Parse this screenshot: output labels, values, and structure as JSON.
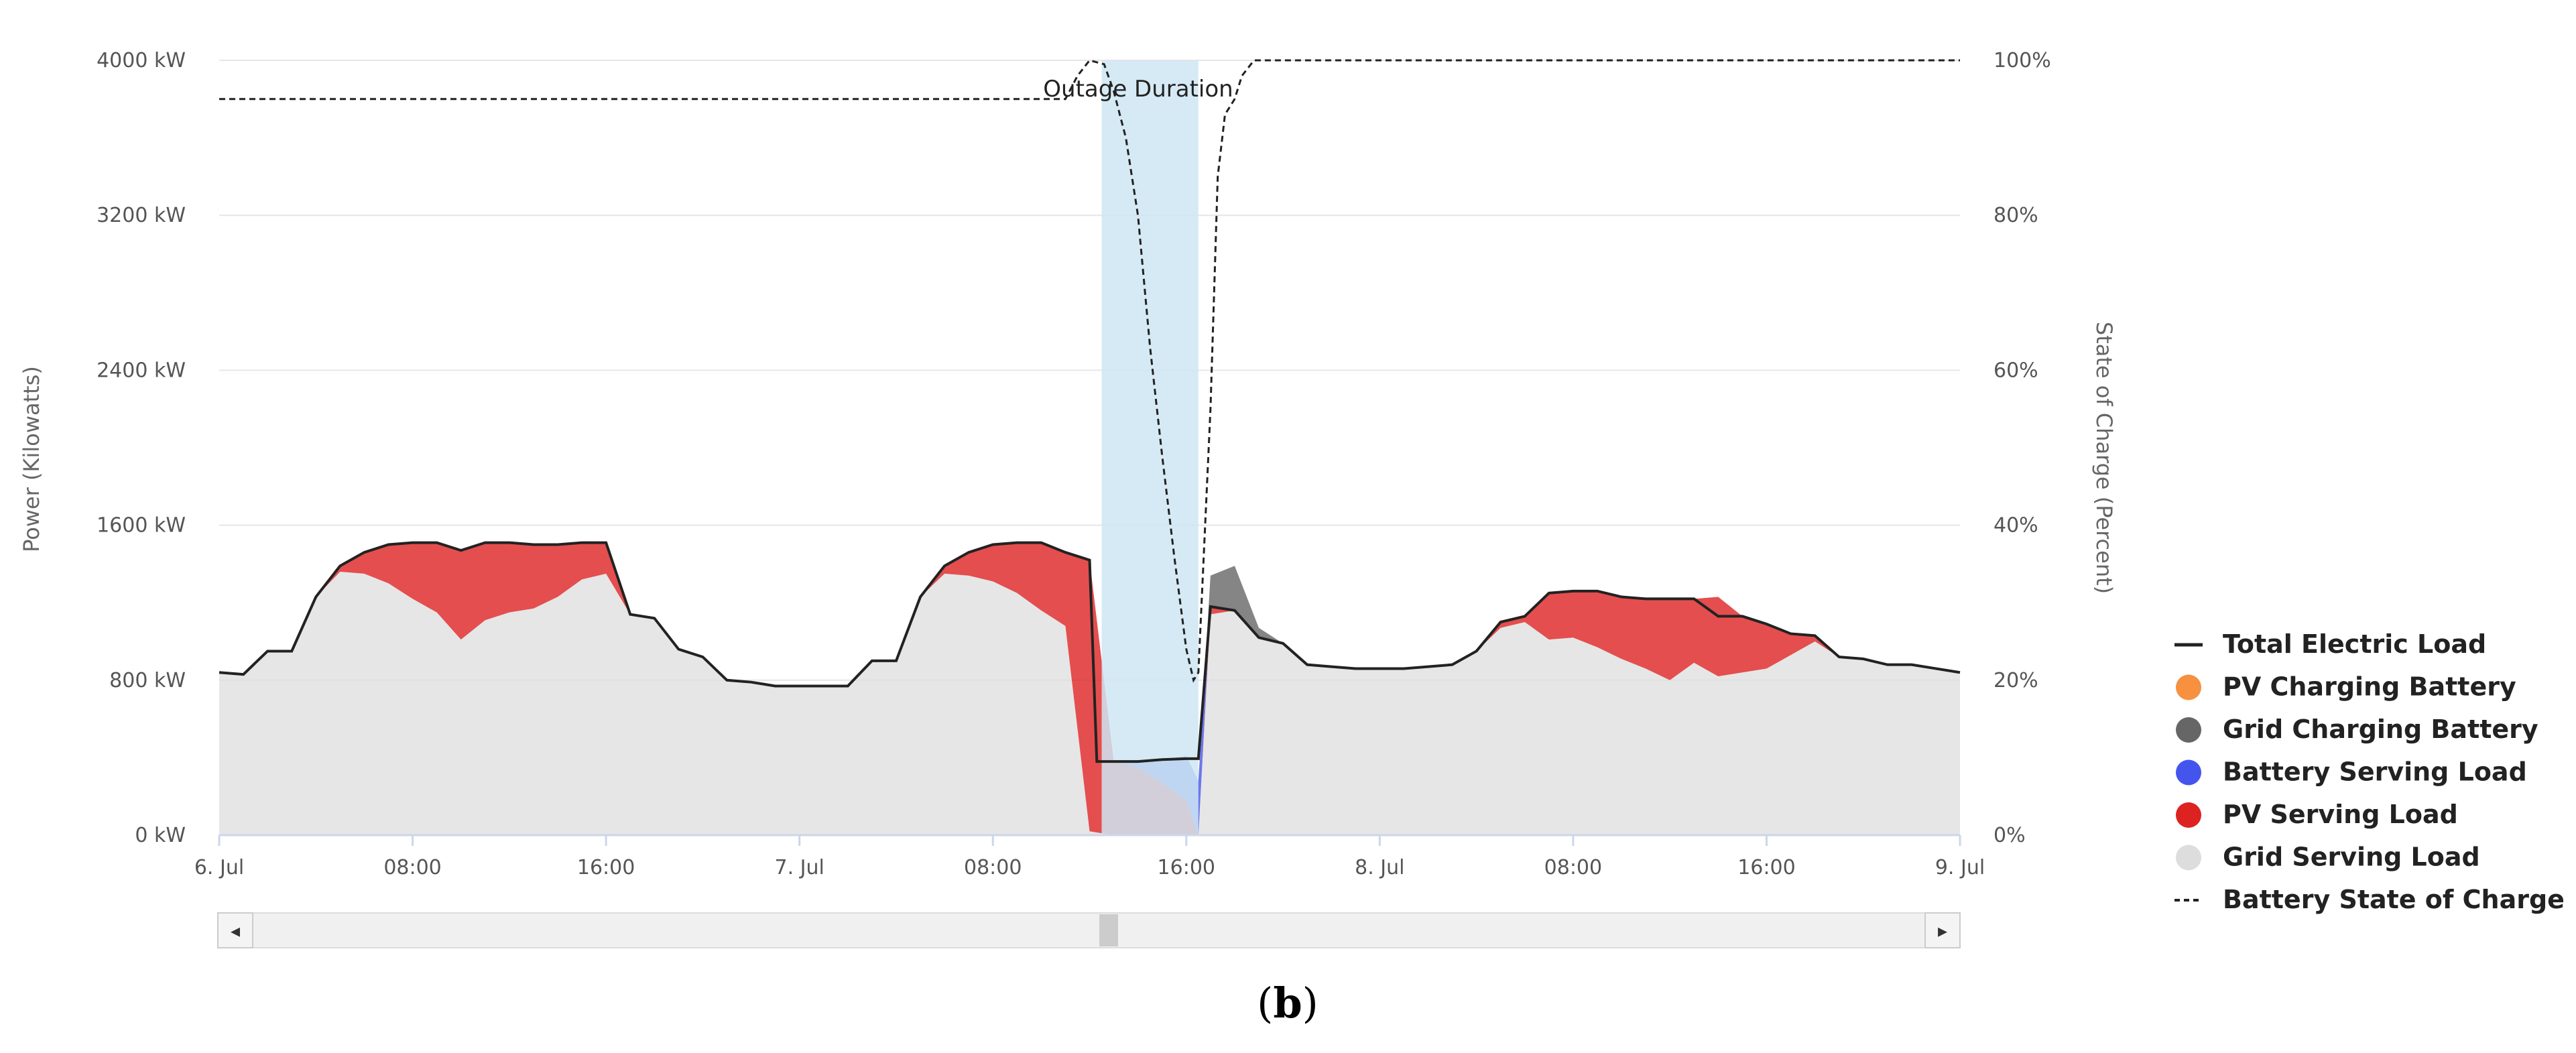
{
  "chart_data": {
    "type": "area",
    "x_unit": "hours from 6. Jul 00:00",
    "x_ticks": [
      "6. Jul",
      "08:00",
      "16:00",
      "7. Jul",
      "08:00",
      "16:00",
      "8. Jul",
      "08:00",
      "16:00",
      "9. Jul"
    ],
    "y_left": {
      "label": "Power (Kilowatts)",
      "ticks": [
        "0 kW",
        "800 kW",
        "1600 kW",
        "2400 kW",
        "3200 kW",
        "4000 kW"
      ],
      "range": [
        0,
        4000
      ]
    },
    "y_right": {
      "label": "State of Charge (Percent)",
      "ticks": [
        "0%",
        "20%",
        "40%",
        "60%",
        "80%",
        "100%"
      ],
      "range": [
        0,
        100
      ]
    },
    "x_range": [
      0,
      72
    ],
    "grid": true,
    "legend_position": "right",
    "annotations": [
      {
        "text": "Outage Duration",
        "x_from": 36.5,
        "x_to": 40.5
      }
    ],
    "series": [
      {
        "name": "Total Electric Load",
        "style": "line",
        "color": "#222222",
        "points": [
          [
            0,
            840
          ],
          [
            1,
            830
          ],
          [
            2,
            950
          ],
          [
            3,
            950
          ],
          [
            4,
            1230
          ],
          [
            5,
            1390
          ],
          [
            6,
            1460
          ],
          [
            7,
            1500
          ],
          [
            8,
            1510
          ],
          [
            9,
            1510
          ],
          [
            10,
            1470
          ],
          [
            11,
            1510
          ],
          [
            12,
            1510
          ],
          [
            13,
            1500
          ],
          [
            14,
            1500
          ],
          [
            15,
            1510
          ],
          [
            16,
            1510
          ],
          [
            17,
            1140
          ],
          [
            18,
            1120
          ],
          [
            19,
            960
          ],
          [
            20,
            920
          ],
          [
            21,
            800
          ],
          [
            22,
            790
          ],
          [
            23,
            770
          ],
          [
            24,
            770
          ],
          [
            25,
            770
          ],
          [
            26,
            770
          ],
          [
            27,
            900
          ],
          [
            28,
            900
          ],
          [
            29,
            1230
          ],
          [
            30,
            1390
          ],
          [
            31,
            1460
          ],
          [
            32,
            1500
          ],
          [
            33,
            1510
          ],
          [
            34,
            1510
          ],
          [
            35,
            1460
          ],
          [
            36,
            1420
          ],
          [
            36.3,
            380
          ],
          [
            37,
            380
          ],
          [
            38,
            380
          ],
          [
            39,
            390
          ],
          [
            40,
            395
          ],
          [
            40.5,
            395
          ],
          [
            41,
            1180
          ],
          [
            42,
            1160
          ],
          [
            43,
            1020
          ],
          [
            44,
            990
          ],
          [
            45,
            880
          ],
          [
            46,
            870
          ],
          [
            47,
            860
          ],
          [
            48,
            860
          ],
          [
            49,
            860
          ],
          [
            50,
            870
          ],
          [
            51,
            880
          ],
          [
            52,
            950
          ],
          [
            53,
            1100
          ],
          [
            54,
            1130
          ],
          [
            55,
            1250
          ],
          [
            56,
            1260
          ],
          [
            57,
            1260
          ],
          [
            58,
            1230
          ],
          [
            59,
            1220
          ],
          [
            60,
            1220
          ],
          [
            61,
            1220
          ],
          [
            62,
            1130
          ],
          [
            63,
            1130
          ],
          [
            64,
            1090
          ],
          [
            65,
            1040
          ],
          [
            66,
            1030
          ],
          [
            67,
            920
          ],
          [
            68,
            910
          ],
          [
            69,
            880
          ],
          [
            70,
            880
          ],
          [
            71,
            860
          ],
          [
            72,
            840
          ]
        ]
      },
      {
        "name": "PV Charging Battery",
        "style": "marker",
        "color": "#f7903f",
        "points": []
      },
      {
        "name": "Grid Charging Battery",
        "style": "area",
        "color": "#666666",
        "points": [
          [
            40.5,
            0
          ],
          [
            41,
            160
          ],
          [
            42,
            230
          ],
          [
            43,
            50
          ],
          [
            44,
            0
          ]
        ]
      },
      {
        "name": "Battery Serving Load",
        "style": "area",
        "color": "#4455ee",
        "points": [
          [
            37,
            0
          ],
          [
            38,
            30
          ],
          [
            39,
            120
          ],
          [
            40,
            230
          ],
          [
            40.5,
            280
          ]
        ]
      },
      {
        "name": "PV Serving Load",
        "style": "area",
        "color": "#dd2222",
        "points": [
          [
            4,
            0
          ],
          [
            5,
            30
          ],
          [
            6,
            110
          ],
          [
            7,
            200
          ],
          [
            8,
            290
          ],
          [
            9,
            360
          ],
          [
            10,
            460
          ],
          [
            11,
            400
          ],
          [
            12,
            360
          ],
          [
            13,
            330
          ],
          [
            14,
            270
          ],
          [
            15,
            190
          ],
          [
            16,
            160
          ],
          [
            17,
            0
          ],
          [
            18,
            0
          ],
          [
            29,
            0
          ],
          [
            30,
            40
          ],
          [
            31,
            120
          ],
          [
            32,
            190
          ],
          [
            33,
            260
          ],
          [
            34,
            350
          ],
          [
            35,
            380
          ],
          [
            36,
            1400
          ],
          [
            37,
            380
          ],
          [
            38,
            350
          ],
          [
            39,
            270
          ],
          [
            40,
            180
          ],
          [
            40.5,
            0
          ],
          [
            41,
            40
          ],
          [
            42,
            0
          ],
          [
            52,
            0
          ],
          [
            53,
            30
          ],
          [
            54,
            30
          ],
          [
            55,
            240
          ],
          [
            56,
            240
          ],
          [
            57,
            290
          ],
          [
            58,
            320
          ],
          [
            59,
            360
          ],
          [
            60,
            420
          ],
          [
            61,
            330
          ],
          [
            62,
            410
          ],
          [
            63,
            290
          ],
          [
            64,
            230
          ],
          [
            65,
            110
          ],
          [
            66,
            30
          ],
          [
            67,
            0
          ],
          [
            72,
            0
          ]
        ]
      },
      {
        "name": "Grid Serving Load",
        "style": "area",
        "color": "#dddddd",
        "points": [
          [
            0,
            840
          ],
          [
            1,
            830
          ],
          [
            2,
            950
          ],
          [
            3,
            950
          ],
          [
            4,
            1230
          ],
          [
            5,
            1360
          ],
          [
            6,
            1350
          ],
          [
            7,
            1300
          ],
          [
            8,
            1220
          ],
          [
            9,
            1150
          ],
          [
            10,
            1010
          ],
          [
            11,
            1110
          ],
          [
            12,
            1150
          ],
          [
            13,
            1170
          ],
          [
            14,
            1230
          ],
          [
            15,
            1320
          ],
          [
            16,
            1350
          ],
          [
            17,
            1140
          ],
          [
            18,
            1120
          ],
          [
            19,
            960
          ],
          [
            20,
            920
          ],
          [
            21,
            800
          ],
          [
            22,
            790
          ],
          [
            23,
            770
          ],
          [
            24,
            770
          ],
          [
            25,
            770
          ],
          [
            26,
            770
          ],
          [
            27,
            900
          ],
          [
            28,
            900
          ],
          [
            29,
            1230
          ],
          [
            30,
            1350
          ],
          [
            31,
            1340
          ],
          [
            32,
            1310
          ],
          [
            33,
            1250
          ],
          [
            34,
            1160
          ],
          [
            35,
            1080
          ],
          [
            36,
            20
          ],
          [
            37,
            0
          ],
          [
            38,
            0
          ],
          [
            39,
            0
          ],
          [
            40,
            0
          ],
          [
            40.5,
            0
          ],
          [
            41,
            1140
          ],
          [
            42,
            1160
          ],
          [
            43,
            1020
          ],
          [
            44,
            990
          ],
          [
            45,
            880
          ],
          [
            46,
            870
          ],
          [
            47,
            860
          ],
          [
            48,
            860
          ],
          [
            49,
            860
          ],
          [
            50,
            870
          ],
          [
            51,
            880
          ],
          [
            52,
            950
          ],
          [
            53,
            1070
          ],
          [
            54,
            1100
          ],
          [
            55,
            1010
          ],
          [
            56,
            1020
          ],
          [
            57,
            970
          ],
          [
            58,
            910
          ],
          [
            59,
            860
          ],
          [
            60,
            800
          ],
          [
            61,
            890
          ],
          [
            62,
            820
          ],
          [
            63,
            840
          ],
          [
            64,
            860
          ],
          [
            65,
            930
          ],
          [
            66,
            1000
          ],
          [
            67,
            920
          ],
          [
            68,
            910
          ],
          [
            69,
            880
          ],
          [
            70,
            880
          ],
          [
            71,
            860
          ],
          [
            72,
            840
          ]
        ]
      },
      {
        "name": "Battery State of Charge",
        "style": "dashed-line",
        "color": "#222222",
        "axis": "right",
        "points": [
          [
            0,
            95
          ],
          [
            35,
            95
          ],
          [
            35.5,
            98
          ],
          [
            36,
            100
          ],
          [
            36.6,
            99.5
          ],
          [
            37,
            96
          ],
          [
            37.5,
            90
          ],
          [
            38,
            80
          ],
          [
            38.5,
            63
          ],
          [
            39,
            49
          ],
          [
            39.5,
            36
          ],
          [
            40,
            24
          ],
          [
            40.3,
            20
          ],
          [
            40.5,
            21
          ],
          [
            41,
            55
          ],
          [
            41.3,
            85
          ],
          [
            41.6,
            93
          ],
          [
            42,
            95
          ],
          [
            42.3,
            98
          ],
          [
            42.8,
            100
          ],
          [
            72,
            100
          ]
        ]
      }
    ]
  },
  "caption": {
    "open": "(",
    "letter": "b",
    "close": ")"
  },
  "scrollbar": {
    "left_arrow": "◂",
    "right_arrow": "▸"
  }
}
